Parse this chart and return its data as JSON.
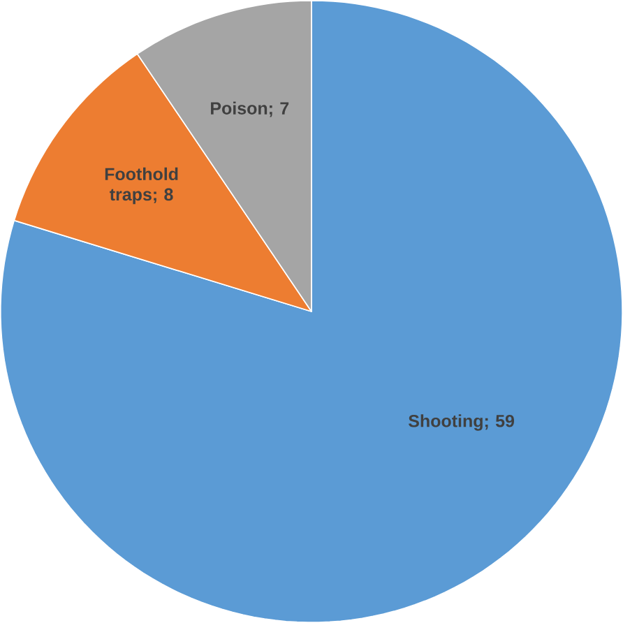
{
  "chart_data": {
    "type": "pie",
    "categories": [
      "Shooting",
      "Foothold traps",
      "Poison"
    ],
    "values": [
      59,
      8,
      7
    ],
    "colors": [
      "#5b9bd5",
      "#ed7d31",
      "#a5a5a5"
    ],
    "value_labels": [
      "; 59",
      "; 8",
      "; 7"
    ]
  }
}
